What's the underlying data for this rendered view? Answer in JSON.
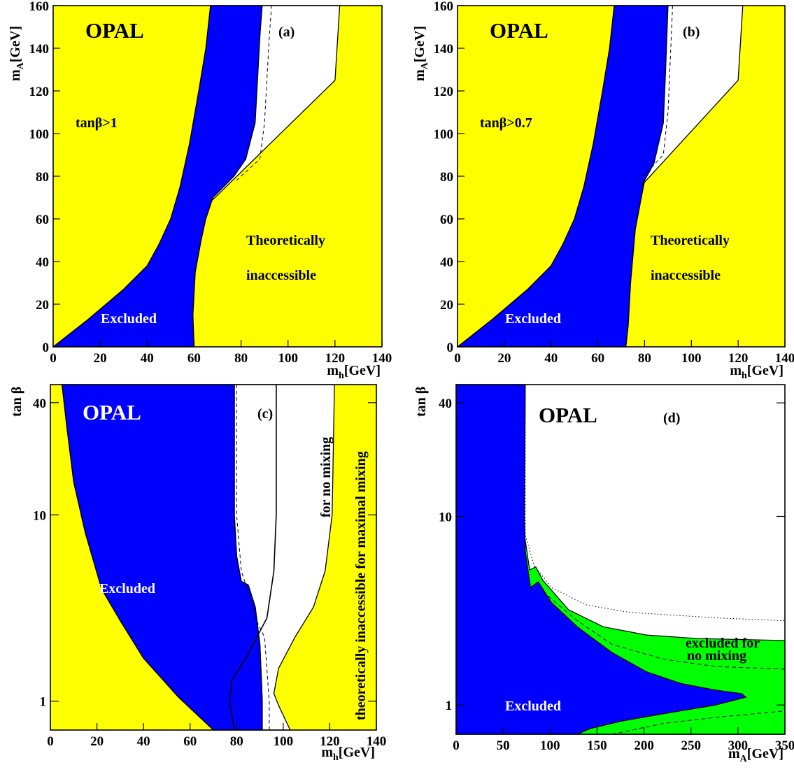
{
  "chart_data": [
    {
      "type": "area",
      "panel_label": "(a)",
      "experiment": "OPAL",
      "xlabel_main": "m",
      "xlabel_sub": "h",
      "xlabel_unit": "[GeV]",
      "ylabel_main": "m",
      "ylabel_sub": "A",
      "ylabel_unit": "[GeV]",
      "xlim": [
        0,
        140
      ],
      "ylim": [
        0,
        160
      ],
      "xticks": [
        "0",
        "20",
        "40",
        "60",
        "80",
        "100",
        "120",
        "140"
      ],
      "yticks": [
        "0",
        "20",
        "40",
        "60",
        "80",
        "100",
        "120",
        "140",
        "160"
      ],
      "annotations": {
        "condition": "tanβ>1",
        "theory_1": "Theoretically",
        "theory_2": "inaccessible",
        "excluded": "Excluded"
      },
      "colors": {
        "theory": "#ffff00",
        "excluded": "#0000ff",
        "allowed": "#ffffff"
      },
      "regions": {
        "excluded_boundary_left": [
          [
            0,
            0
          ],
          [
            15,
            13
          ],
          [
            30,
            27
          ],
          [
            40,
            38
          ],
          [
            45,
            48
          ],
          [
            50,
            60
          ],
          [
            54,
            75
          ],
          [
            58,
            95
          ],
          [
            62,
            120
          ],
          [
            65,
            140
          ],
          [
            67,
            160
          ]
        ],
        "excluded_boundary_right": [
          [
            60,
            0
          ],
          [
            59.5,
            15
          ],
          [
            60.5,
            35
          ],
          [
            63,
            50
          ],
          [
            65,
            60
          ],
          [
            68,
            70
          ],
          [
            77,
            80
          ],
          [
            82,
            88
          ],
          [
            86,
            105
          ],
          [
            87,
            125
          ],
          [
            88,
            145
          ],
          [
            89,
            160
          ]
        ],
        "theory_boundary": [
          [
            60,
            0
          ],
          [
            60,
            20
          ],
          [
            63,
            50
          ],
          [
            68,
            69
          ],
          [
            120,
            125
          ],
          [
            122,
            160
          ]
        ],
        "expected_limit_dashed": [
          [
            78,
            78
          ],
          [
            82,
            82
          ],
          [
            88,
            88
          ],
          [
            90,
            105
          ],
          [
            91,
            125
          ],
          [
            92,
            145
          ],
          [
            93,
            160
          ]
        ]
      }
    },
    {
      "type": "area",
      "panel_label": "(b)",
      "experiment": "OPAL",
      "xlabel_main": "m",
      "xlabel_sub": "h",
      "xlabel_unit": "[GeV]",
      "ylabel_main": "m",
      "ylabel_sub": "A",
      "ylabel_unit": "[GeV]",
      "xlim": [
        0,
        140
      ],
      "ylim": [
        0,
        160
      ],
      "xticks": [
        "0",
        "20",
        "40",
        "60",
        "80",
        "100",
        "120",
        "140"
      ],
      "yticks": [
        "0",
        "20",
        "40",
        "60",
        "80",
        "100",
        "120",
        "140",
        "160"
      ],
      "annotations": {
        "condition": "tanβ>0.7",
        "theory_1": "Theoretically",
        "theory_2": "inaccessible",
        "excluded": "Excluded"
      },
      "colors": {
        "theory": "#ffff00",
        "excluded": "#0000ff",
        "allowed": "#ffffff"
      },
      "regions": {
        "excluded_boundary_left": [
          [
            0,
            0
          ],
          [
            15,
            13
          ],
          [
            30,
            27
          ],
          [
            40,
            38
          ],
          [
            45,
            48
          ],
          [
            50,
            60
          ],
          [
            54,
            75
          ],
          [
            58,
            95
          ],
          [
            62,
            120
          ],
          [
            65,
            140
          ],
          [
            67,
            160
          ]
        ],
        "excluded_boundary_right": [
          [
            72,
            0
          ],
          [
            73,
            10
          ],
          [
            74,
            30
          ],
          [
            76,
            55
          ],
          [
            80,
            78
          ],
          [
            84,
            86
          ],
          [
            88,
            105
          ],
          [
            89,
            130
          ],
          [
            90,
            160
          ]
        ],
        "theory_boundary": [
          [
            72,
            0
          ],
          [
            73,
            10
          ],
          [
            74,
            30
          ],
          [
            76,
            55
          ],
          [
            79,
            76
          ],
          [
            120,
            125
          ],
          [
            122,
            160
          ]
        ],
        "expected_limit_dashed": [
          [
            77,
            78
          ],
          [
            82,
            83
          ],
          [
            88,
            90
          ],
          [
            90,
            110
          ],
          [
            91,
            135
          ],
          [
            92,
            160
          ]
        ]
      }
    },
    {
      "type": "area",
      "panel_label": "(c)",
      "experiment": "OPAL",
      "xlabel_main": "m",
      "xlabel_sub": "h",
      "xlabel_unit": "[GeV]",
      "ylabel": "tan β",
      "xlim": [
        0,
        140
      ],
      "ylim": [
        0.7,
        50
      ],
      "yscale": "log",
      "xticks": [
        "0",
        "20",
        "40",
        "60",
        "80",
        "100",
        "120",
        "140"
      ],
      "yticks": [
        {
          "value": 1,
          "label": "1"
        },
        {
          "value": 10,
          "label": "10"
        },
        {
          "value": 40,
          "label": "40"
        }
      ],
      "annotations": {
        "excluded": "Excluded",
        "no_mixing": "for no mixing",
        "max_mixing": "theoretically inaccessible for maximal mixing"
      },
      "colors": {
        "theory": "#ffff00",
        "excluded": "#0000ff",
        "allowed": "#ffffff"
      },
      "regions": {
        "excluded_boundary_left": [
          [
            5,
            50
          ],
          [
            7,
            30
          ],
          [
            10,
            15
          ],
          [
            15,
            8
          ],
          [
            22,
            4
          ],
          [
            30,
            2.7
          ],
          [
            40,
            1.7
          ],
          [
            55,
            1.05
          ],
          [
            70,
            0.7
          ]
        ],
        "excluded_boundary_right": [
          [
            79,
            50
          ],
          [
            79,
            10
          ],
          [
            80,
            6
          ],
          [
            82,
            4.4
          ],
          [
            85,
            4.2
          ],
          [
            88,
            3.2
          ],
          [
            90,
            2.0
          ],
          [
            91,
            1.0
          ],
          [
            91,
            0.7
          ]
        ],
        "no_mixing_curve": [
          [
            97,
            50
          ],
          [
            97,
            10
          ],
          [
            96,
            5
          ],
          [
            93,
            2.8
          ],
          [
            84,
            1.7
          ],
          [
            78,
            1.3
          ],
          [
            77,
            1.0
          ],
          [
            79,
            0.7
          ]
        ],
        "max_mixing_boundary": [
          [
            122,
            50
          ],
          [
            121,
            10
          ],
          [
            118,
            5
          ],
          [
            113,
            3.2
          ],
          [
            105,
            2.2
          ],
          [
            98,
            1.5
          ],
          [
            96,
            1.1
          ],
          [
            98,
            0.95
          ],
          [
            103,
            0.7
          ]
        ],
        "expected_limit_dashed": [
          [
            80,
            50
          ],
          [
            80,
            10
          ],
          [
            82,
            5
          ],
          [
            86,
            3.5
          ],
          [
            88,
            2.8
          ],
          [
            92,
            2.2
          ],
          [
            94,
            1.0
          ],
          [
            94,
            0.7
          ]
        ]
      }
    },
    {
      "type": "area",
      "panel_label": "(d)",
      "experiment": "OPAL",
      "xlabel_main": "m",
      "xlabel_sub": "A",
      "xlabel_unit": "[GeV]",
      "ylabel": "tan β",
      "xlim": [
        0,
        380
      ],
      "ylim": [
        0.7,
        50
      ],
      "yscale": "log",
      "xticks": [
        "0",
        "50",
        "100",
        "150",
        "200",
        "250",
        "300",
        "350"
      ],
      "yticks": [
        {
          "value": 1,
          "label": "1"
        },
        {
          "value": 10,
          "label": "10"
        },
        {
          "value": 40,
          "label": "40"
        }
      ],
      "annotations": {
        "excluded": "Excluded",
        "no_mixing_1": "excluded for",
        "no_mixing_2": "no mixing"
      },
      "colors": {
        "excluded": "#0000ff",
        "excluded_no_mixing": "#00ff00",
        "allowed": "#ffffff"
      },
      "regions": {
        "excluded_boundary": [
          [
            80,
            50
          ],
          [
            79,
            10
          ],
          [
            80,
            6.5
          ],
          [
            86,
            4.2
          ],
          [
            95,
            4.5
          ],
          [
            110,
            3.5
          ],
          [
            140,
            2.6
          ],
          [
            180,
            1.9
          ],
          [
            220,
            1.5
          ],
          [
            260,
            1.3
          ],
          [
            300,
            1.2
          ],
          [
            330,
            1.15
          ],
          [
            335,
            1.1
          ],
          [
            300,
            1.0
          ],
          [
            240,
            0.9
          ],
          [
            190,
            0.82
          ],
          [
            155,
            0.75
          ],
          [
            140,
            0.7
          ]
        ],
        "no_mixing_boundary": [
          [
            79,
            8
          ],
          [
            85,
            5.2
          ],
          [
            92,
            5.4
          ],
          [
            100,
            4.6
          ],
          [
            130,
            3.2
          ],
          [
            170,
            2.6
          ],
          [
            220,
            2.35
          ],
          [
            280,
            2.25
          ],
          [
            380,
            2.2
          ]
        ],
        "expected_dotted": [
          [
            80,
            50
          ],
          [
            80,
            8
          ],
          [
            90,
            5.5
          ],
          [
            110,
            4.2
          ],
          [
            150,
            3.4
          ],
          [
            200,
            3.1
          ],
          [
            300,
            2.9
          ],
          [
            380,
            2.8
          ]
        ],
        "expected_dashed_upper": [
          [
            100,
            4.0
          ],
          [
            140,
            2.8
          ],
          [
            180,
            2.1
          ],
          [
            240,
            1.75
          ],
          [
            300,
            1.6
          ],
          [
            380,
            1.55
          ]
        ],
        "expected_dashed_lower": [
          [
            180,
            0.7
          ],
          [
            240,
            0.8
          ],
          [
            300,
            0.86
          ],
          [
            380,
            0.93
          ]
        ]
      }
    }
  ]
}
